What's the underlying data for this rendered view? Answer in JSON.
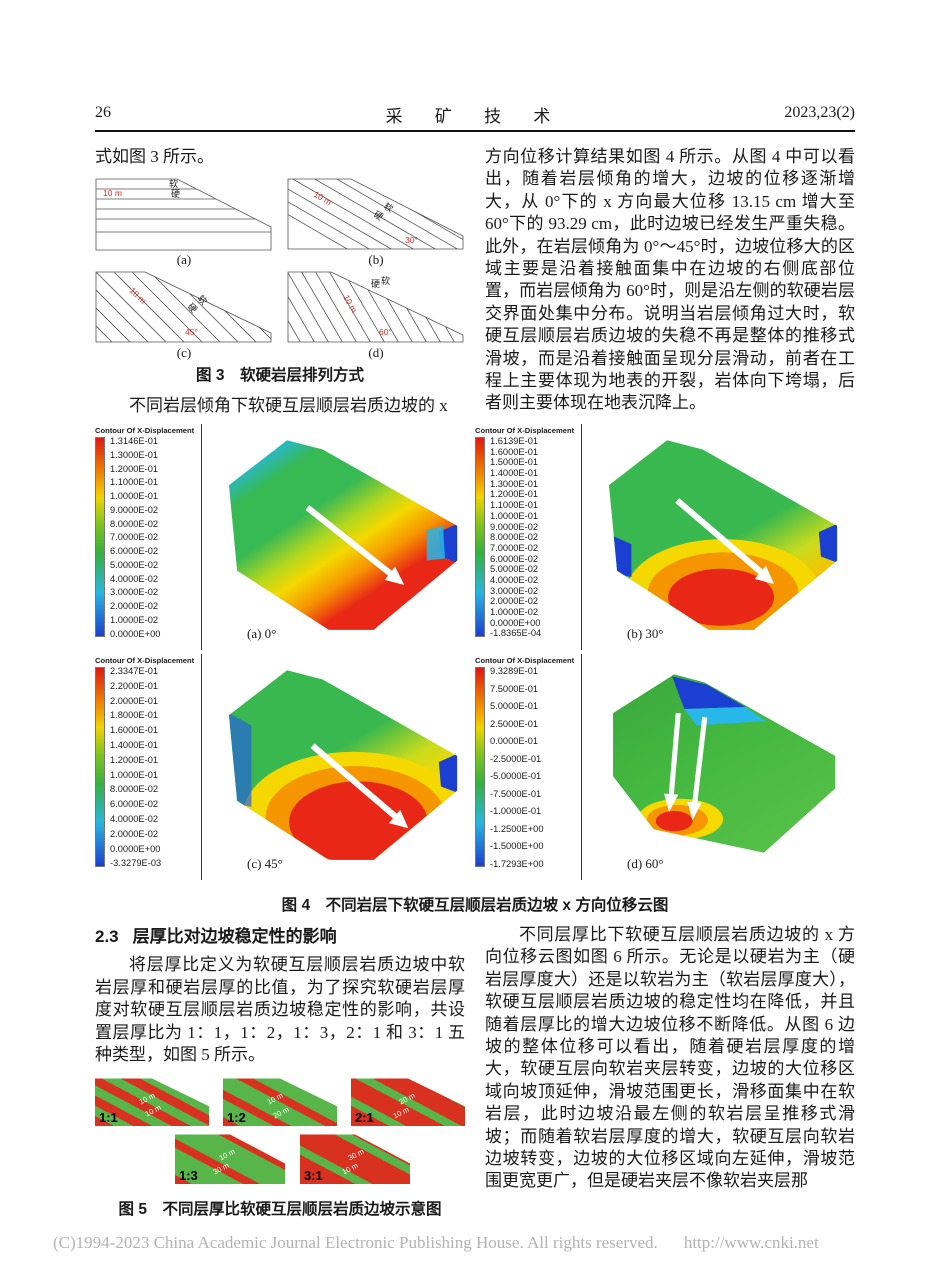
{
  "header": {
    "page_number": "26",
    "journal_title": "采 矿 技 术",
    "issue": "2023,23(2)"
  },
  "left_column": {
    "intro_text": "式如图 3 所示。",
    "figure3": {
      "caption": "图 3　软硬岩层排列方式",
      "subfigures": [
        {
          "label": "(a)",
          "thickness": "10 m",
          "soft": "软",
          "hard": "硬",
          "angle": ""
        },
        {
          "label": "(b)",
          "thickness": "10 m",
          "soft": "软",
          "hard": "硬",
          "angle": "30°"
        },
        {
          "label": "(c)",
          "thickness": "10 m",
          "soft": "软",
          "hard": "硬",
          "angle": "45°"
        },
        {
          "label": "(d)",
          "thickness": "10 m",
          "soft": "软",
          "hard": "硬",
          "angle": "60°"
        }
      ]
    },
    "after_fig3_text": "不同岩层倾角下软硬互层顺层岩质边坡的 x",
    "section": {
      "number": "2.3",
      "title": "层厚比对边坡稳定性的影响"
    },
    "section_text": "将层厚比定义为软硬互层顺层岩质边坡中软岩层厚和硬岩层厚的比值，为了探究软硬岩层厚度对软硬互层顺层岩质边坡稳定性的影响，共设置层厚比为 1：1，1：2，1：3，2：1 和 3：1 五种类型，如图 5 所示。",
    "figure5": {
      "caption": "图 5　不同层厚比软硬互层顺层岩质边坡示意图",
      "items": [
        {
          "ratio": "1:1",
          "labels": [
            "10 m",
            "10 m"
          ]
        },
        {
          "ratio": "1:2",
          "labels": [
            "10 m",
            "20 m"
          ]
        },
        {
          "ratio": "2:1",
          "labels": [
            "20 m",
            "10 m"
          ]
        },
        {
          "ratio": "1:3",
          "labels": [
            "10 m",
            "30 m"
          ]
        },
        {
          "ratio": "3:1",
          "labels": [
            "30 m",
            "10 m"
          ]
        }
      ]
    }
  },
  "right_column": {
    "paragraph1": "方向位移计算结果如图 4 所示。从图 4 中可以看出，随着岩层倾角的增大，边坡的位移逐渐增大，从 0°下的 x 方向最大位移 13.15 cm 增大至 60°下的 93.29 cm，此时边坡已经发生严重失稳。此外，在岩层倾角为 0°～45°时，边坡位移大的区域主要是沿着接触面集中在边坡的右侧底部位置，而岩层倾角为 60°时，则是沿左侧的软硬岩层交界面处集中分布。说明当岩层倾角过大时，软硬互层顺层岩质边坡的失稳不再是整体的推移式滑坡，而是沿着接触面呈现分层滑动，前者在工程上主要体现为地表的开裂，岩体向下垮塌，后者则主要体现在地表沉降上。",
    "paragraph2": "不同层厚比下软硬互层顺层岩质边坡的 x 方向位移云图如图 6 所示。无论是以硬岩为主（硬岩层厚度大）还是以软岩为主（软岩层厚度大），软硬互层顺层岩质边坡的稳定性均在降低，并且随着层厚比的增大边坡位移不断降低。从图 6 边坡的整体位移可以看出，随着硬岩层厚度的增大，软硬互层向软岩夹层转变，边坡的大位移区域向坡顶延伸，滑坡范围更长，滑移面集中在软岩层，此时边坡沿最左侧的软岩层呈推移式滑坡；而随着软岩层厚度的增大，软硬互层向软岩边坡转变，边坡的大位移区域向左延伸，滑坡范围更宽更广，但是硬岩夹层不像软岩夹层那"
  },
  "figure4": {
    "caption": "图 4　不同岩层下软硬互层顺层岩质边坡 x 方向位移云图",
    "plots": [
      {
        "label": "(a) 0°",
        "legend_title": "Contour Of X-Displacement",
        "legend_values": [
          "1.3146E-01",
          "1.3000E-01",
          "1.2000E-01",
          "1.1000E-01",
          "1.0000E-01",
          "9.0000E-02",
          "8.0000E-02",
          "7.0000E-02",
          "6.0000E-02",
          "5.0000E-02",
          "4.0000E-02",
          "3.0000E-02",
          "2.0000E-02",
          "1.0000E-02",
          "0.0000E+00"
        ]
      },
      {
        "label": "(b) 30°",
        "legend_title": "Contour Of X-Displacement",
        "legend_values": [
          "1.6139E-01",
          "1.6000E-01",
          "1.5000E-01",
          "1.4000E-01",
          "1.3000E-01",
          "1.2000E-01",
          "1.1000E-01",
          "1.0000E-01",
          "9.0000E-02",
          "8.0000E-02",
          "7.0000E-02",
          "6.0000E-02",
          "5.0000E-02",
          "4.0000E-02",
          "3.0000E-02",
          "2.0000E-02",
          "1.0000E-02",
          "0.0000E+00",
          "-1.8365E-04"
        ]
      },
      {
        "label": "(c) 45°",
        "legend_title": "Contour Of X-Displacement",
        "legend_values": [
          "2.3347E-01",
          "2.2000E-01",
          "2.0000E-01",
          "1.8000E-01",
          "1.6000E-01",
          "1.4000E-01",
          "1.2000E-01",
          "1.0000E-01",
          "8.0000E-02",
          "6.0000E-02",
          "4.0000E-02",
          "2.0000E-02",
          "0.0000E+00",
          "-3.3279E-03"
        ]
      },
      {
        "label": "(d) 60°",
        "legend_title": "Contour Of X-Displacement",
        "legend_values": [
          "9.3289E-01",
          "7.5000E-01",
          "5.0000E-01",
          "2.5000E-01",
          "0.0000E-01",
          "-2.5000E-01",
          "-5.0000E-01",
          "-7.5000E-01",
          "-1.0000E-01",
          "-1.2500E+00",
          "-1.5000E+00",
          "-1.7293E+00"
        ]
      }
    ]
  },
  "footer": {
    "copyright": "(C)1994-2023 China Academic Journal Electronic Publishing House. All rights reserved.",
    "url": "http://www.cnki.net"
  },
  "colors": {
    "stripe_green": "#58b549",
    "stripe_red": "#d9311f",
    "contour_max": "#dd1910",
    "contour_min": "#1b3fd0"
  }
}
